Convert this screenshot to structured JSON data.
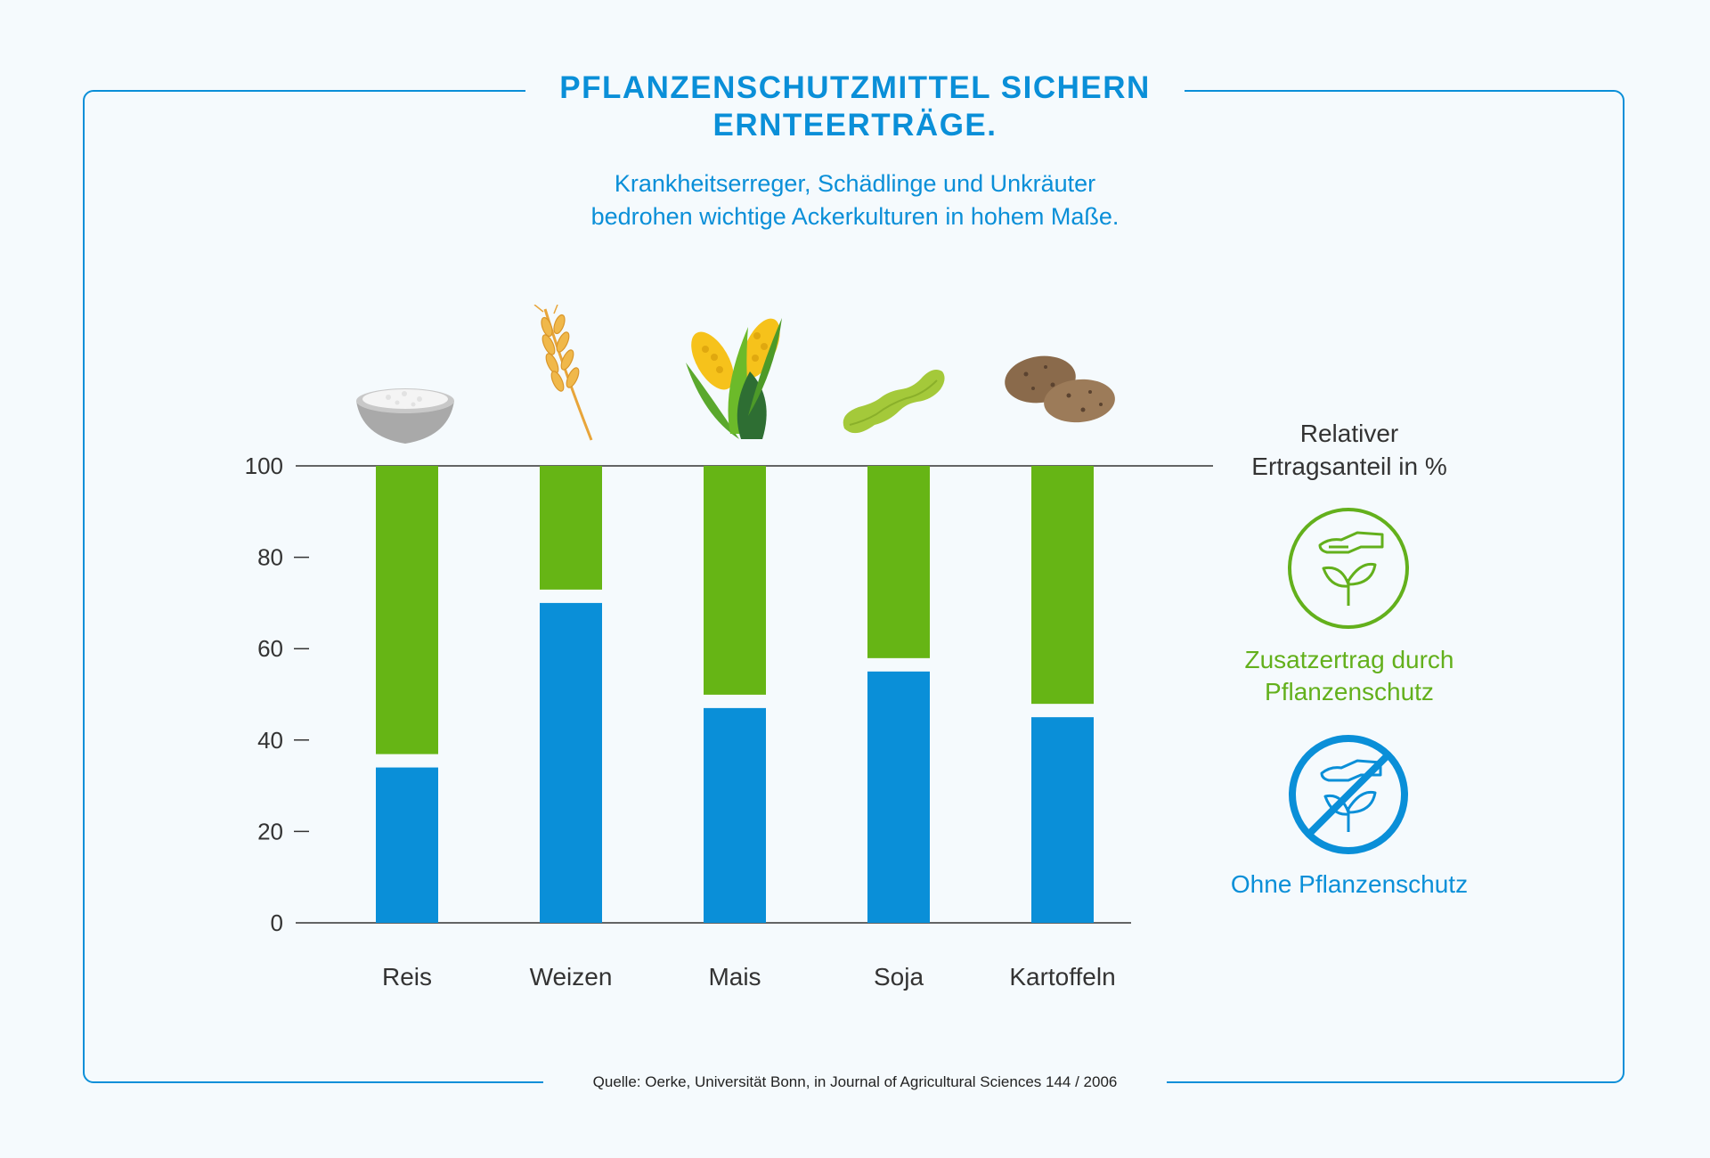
{
  "title_lines": [
    "Pflanzenschutzmittel sichern",
    "Ernteerträge."
  ],
  "subtitle_lines": [
    "Krankheitserreger, Schädlinge und Unkräuter",
    "bedrohen wichtige Ackerkulturen in hohem Maße."
  ],
  "legend": {
    "title_lines": [
      "Relativer",
      "Ertragsanteil in %"
    ],
    "with_protection_lines": [
      "Zusatzertrag durch",
      "Pflanzenschutz"
    ],
    "without_protection": "Ohne Pflanzenschutz",
    "with_icon": "hand-over-plant-icon",
    "without_icon": "no-crop-protection-icon"
  },
  "source": "Quelle: Oerke, Universität Bonn, in Journal of Agricultural Sciences 144 / 2006",
  "colors": {
    "blue": "#0a8fd8",
    "green": "#66b515",
    "text": "#333333",
    "background": "#f5fafd"
  },
  "crop_icons": [
    "rice-bowl-icon",
    "wheat-icon",
    "corn-icon",
    "soybean-pod-icon",
    "potato-icon"
  ],
  "chart_data": {
    "type": "bar",
    "stacked": true,
    "categories": [
      "Reis",
      "Weizen",
      "Mais",
      "Soja",
      "Kartoffeln"
    ],
    "series": [
      {
        "name": "Ohne Pflanzenschutz",
        "color": "#0a8fd8",
        "values": [
          34,
          70,
          47,
          55,
          45
        ]
      },
      {
        "name": "Zusatzertrag durch Pflanzenschutz",
        "color": "#66b515",
        "values": [
          66,
          30,
          53,
          45,
          55
        ]
      }
    ],
    "yticks": [
      0,
      20,
      40,
      60,
      80,
      100
    ],
    "ylim": [
      0,
      100
    ],
    "ylabel": "Relativer Ertragsanteil in %",
    "xlabel": ""
  }
}
